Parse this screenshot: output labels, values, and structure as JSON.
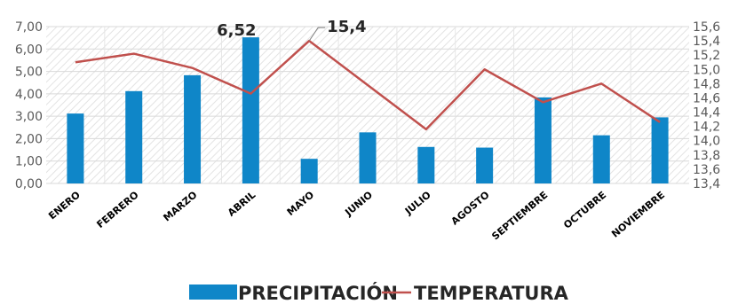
{
  "chart_data": {
    "type": "bar",
    "categories": [
      "ENERO",
      "FEBRERO",
      "MARZO",
      "ABRIL",
      "MAYO",
      "JUNIO",
      "JULIO",
      "AGOSTO",
      "SEPTIEMBRE",
      "OCTUBRE",
      "NOVIEMBRE"
    ],
    "series": [
      {
        "name": "PRECIPITACIÓN",
        "type": "bar",
        "axis": "left",
        "color": "#0F86C8",
        "values": [
          3.12,
          4.12,
          4.83,
          6.52,
          1.1,
          2.28,
          1.63,
          1.6,
          3.84,
          2.15,
          2.95
        ]
      },
      {
        "name": "TEMPERATURA",
        "type": "line",
        "axis": "right",
        "color": "#C0504D",
        "values": [
          15.1,
          15.22,
          15.02,
          14.66,
          15.4,
          14.78,
          14.16,
          15.0,
          14.54,
          14.8,
          14.26
        ]
      }
    ],
    "y_left": {
      "lim": [
        0,
        7
      ],
      "ticks": [
        "0,00",
        "1,00",
        "2,00",
        "3,00",
        "4,00",
        "5,00",
        "6,00",
        "7,00"
      ]
    },
    "y_right": {
      "lim": [
        13.4,
        15.6
      ],
      "ticks": [
        "13,4",
        "13,6",
        "13,8",
        "14,0",
        "14,2",
        "14,4",
        "14,6",
        "14,8",
        "15,0",
        "15,2",
        "15,4",
        "15,6"
      ]
    },
    "annotations": [
      {
        "text": "6,52",
        "series": 0,
        "index": 3
      },
      {
        "text": "15,4",
        "series": 1,
        "index": 4
      }
    ],
    "legend": {
      "position": "bottom",
      "items": [
        "PRECIPITACIÓN",
        "TEMPERATURA"
      ]
    },
    "grid": true
  }
}
